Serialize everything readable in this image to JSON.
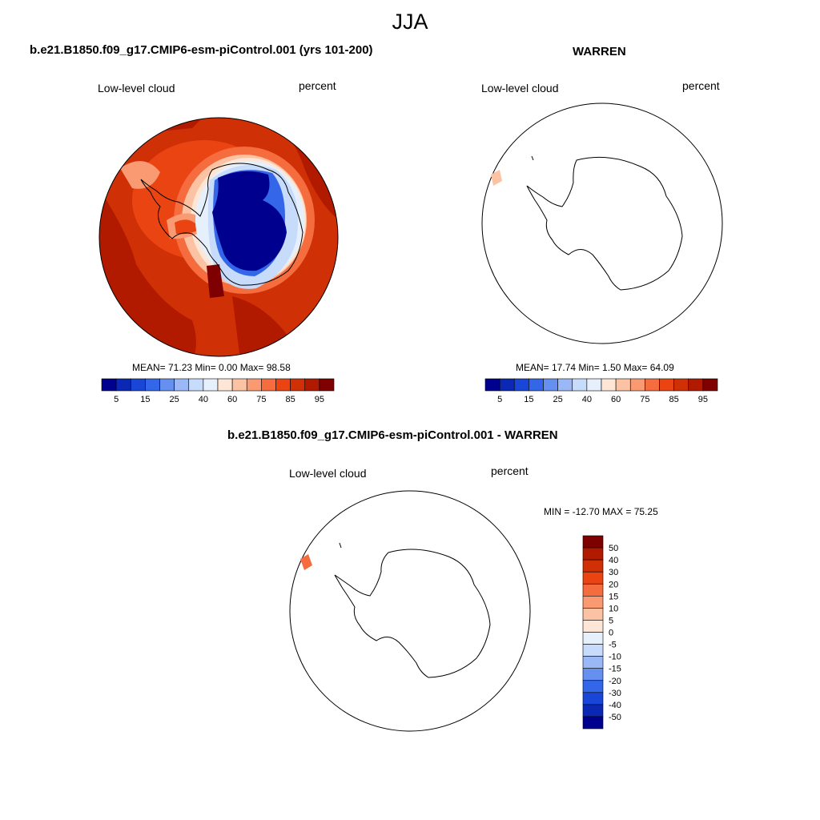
{
  "title": "JJA",
  "panels": [
    {
      "id": "model",
      "title": "b.e21.B1850.f09_g17.CMIP6-esm-piControl.001 (yrs 101-200)",
      "left_label": "Low-level cloud",
      "right_label": "percent",
      "stats": "MEAN=  71.23  Min=   0.00  Max=  98.58"
    },
    {
      "id": "obs",
      "title": "WARREN",
      "left_label": "Low-level cloud",
      "right_label": "percent",
      "stats": "MEAN=  17.74  Min=   1.50  Max=  64.09"
    },
    {
      "id": "diff",
      "title": "b.e21.B1850.f09_g17.CMIP6-esm-piControl.001 - WARREN",
      "left_label": "Low-level cloud",
      "right_label": "percent",
      "stats": "MIN = -12.70 MAX =  75.25"
    }
  ],
  "colorbar_abs": {
    "colors": [
      "#00008e",
      "#0a28b4",
      "#1946d6",
      "#3366e8",
      "#6690f0",
      "#9ab8f6",
      "#c7dbfa",
      "#e6f0fc",
      "#fde6d6",
      "#fbc3a3",
      "#f99a72",
      "#f56c3e",
      "#ea4412",
      "#d03006",
      "#b21a00",
      "#7f0000"
    ],
    "labels": [
      "5",
      "15",
      "25",
      "40",
      "60",
      "75",
      "85",
      "95"
    ]
  },
  "colorbar_diff": {
    "colors": [
      "#7f0000",
      "#b21a00",
      "#d03006",
      "#ea4412",
      "#f56c3e",
      "#f99a72",
      "#fbc3a3",
      "#fde6d6",
      "#e6f0fc",
      "#c7dbfa",
      "#9ab8f6",
      "#6690f0",
      "#3366e8",
      "#1946d6",
      "#0a28b4",
      "#00008e"
    ],
    "labels": [
      "50",
      "40",
      "30",
      "20",
      "15",
      "10",
      "5",
      "0",
      "-5",
      "-10",
      "-15",
      "-20",
      "-30",
      "-40",
      "-50"
    ]
  }
}
